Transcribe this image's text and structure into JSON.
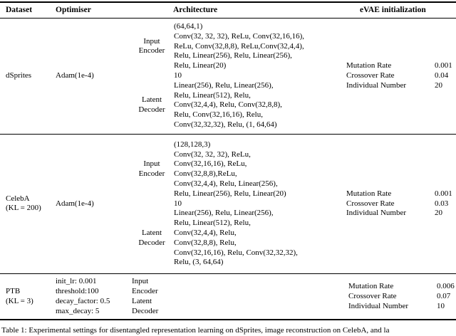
{
  "header": {
    "dataset": "Dataset",
    "optimiser": "Optimiser",
    "architecture": "Architecture",
    "evae": "eVAE initialization"
  },
  "rows": {
    "dsprites": {
      "dataset": "dSprites",
      "optimiser": "Adam(1e-4)",
      "encoder_label_1": "Input",
      "encoder_label_2": "Encoder",
      "enc": [
        "(64,64,1)",
        "Conv(32, 32, 32), ReLu, Conv(32,16,16),",
        "ReLu, Conv(32,8,8), ReLu,Conv(32,4,4),",
        "Relu, Linear(256), Relu, Linear(256),",
        "Relu, Linear(20)"
      ],
      "latent_dim": "10",
      "decoder_label_1": "Latent",
      "decoder_label_2": "Decoder",
      "dec": [
        "Linear(256), Relu, Linear(256),",
        "Relu, Linear(512), Relu,",
        "Conv(32,4,4), Relu, Conv(32,8,8),",
        "Relu, Conv(32,16,16), Relu,",
        "Conv(32,32,32), Relu, (1, 64,64)"
      ],
      "evae": {
        "mutation_label": "Mutation Rate",
        "mutation_value": "0.001",
        "crossover_label": "Crossover Rate",
        "crossover_value": "0.04",
        "individual_label": "Individual Number",
        "individual_value": "20"
      }
    },
    "celeba": {
      "dataset_1": "CelebA",
      "dataset_2": "(KL = 200)",
      "optimiser": "Adam(1e-4)",
      "encoder_label_1": "Input",
      "encoder_label_2": "Encoder",
      "enc": [
        "(128,128,3)",
        "Conv(32, 32, 32), ReLu,",
        "Conv(32,16,16), ReLu,",
        "Conv(32,8,8),ReLu,",
        "Conv(32,4,4), Relu, Linear(256),",
        "Relu, Linear(256), Relu, Linear(20)"
      ],
      "latent_dim": "10",
      "decoder_label_1": "Latent",
      "decoder_label_2": "Decoder",
      "dec": [
        "Linear(256), Relu, Linear(256),",
        "Relu, Linear(512), Relu,",
        "Conv(32,4,4), Relu,",
        "Conv(32,8,8), Relu,",
        "Conv(32,16,16), Relu, Conv(32,32,32),",
        "Relu, (3, 64,64)"
      ],
      "evae": {
        "mutation_label": "Mutation Rate",
        "mutation_value": "0.001",
        "crossover_label": "Crossover Rate",
        "crossover_value": "0.03",
        "individual_label": "Individual Number",
        "individual_value": "20"
      }
    },
    "ptb": {
      "dataset_1": "PTB",
      "dataset_2": "(KL = 3)",
      "opt": [
        "init_lr: 0.001",
        "threshold:100",
        "decay_factor: 0.5",
        "max_decay: 5"
      ],
      "arch_labels": [
        "Input",
        "Encoder",
        "Latent",
        "Decoder"
      ],
      "evae": {
        "mutation_label": "Mutation Rate",
        "mutation_value": "0.006",
        "crossover_label": "Crossover Rate",
        "crossover_value": "0.07",
        "individual_label": "Individual Number",
        "individual_value": "10"
      }
    }
  },
  "caption": "Table 1: Experimental settings for disentangled representation learning on dSprites, image reconstruction on CelebA, and la"
}
